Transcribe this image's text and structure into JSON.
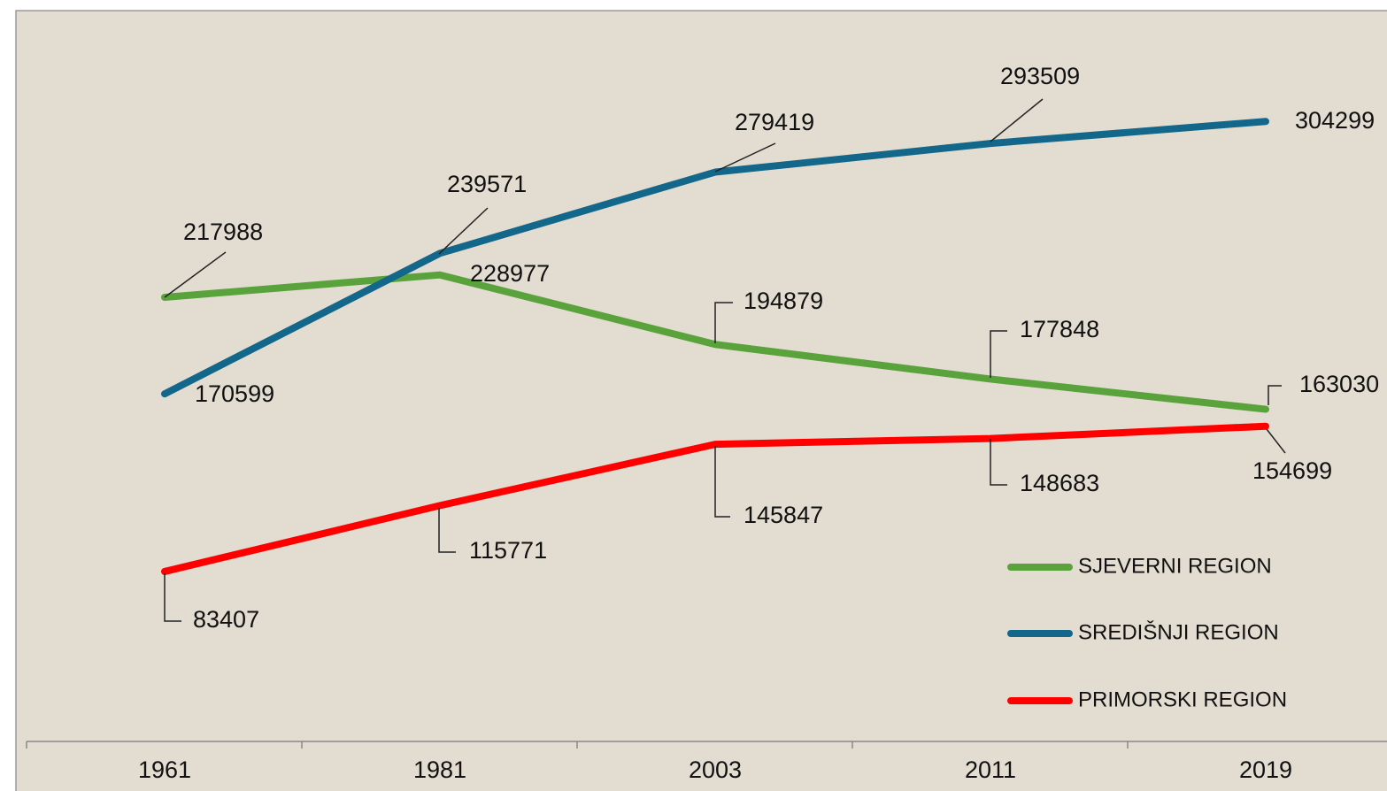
{
  "chart_data": {
    "type": "line",
    "categories": [
      "1961",
      "1981",
      "2003",
      "2011",
      "2019"
    ],
    "series": [
      {
        "name": "SJEVERNI REGION",
        "color": "#5aa33c",
        "values": [
          217988,
          228977,
          194879,
          177848,
          163030
        ]
      },
      {
        "name": "SREDIŠNJI REGION",
        "color": "#13678a",
        "values": [
          170599,
          239571,
          279419,
          293509,
          304299
        ]
      },
      {
        "name": "PRIMORSKI REGION",
        "color": "#ff0000",
        "values": [
          83407,
          115771,
          145847,
          148683,
          154699
        ]
      }
    ],
    "ylim": [
      0,
      350000
    ]
  }
}
